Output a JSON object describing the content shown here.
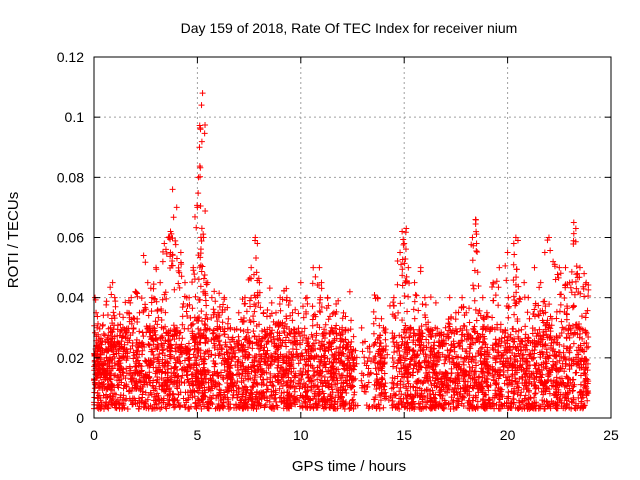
{
  "chart_data": {
    "type": "scatter",
    "title": "Day 159 of 2018, Rate Of TEC Index for receiver nium",
    "xlabel": "GPS time / hours",
    "ylabel": "ROTI / TECUs",
    "xlim": [
      0,
      25
    ],
    "ylim": [
      0,
      0.12
    ],
    "xticks": [
      0,
      5,
      10,
      15,
      20,
      25
    ],
    "xtick_labels": [
      "0",
      "5",
      "10",
      "15",
      "20",
      "25"
    ],
    "yticks": [
      0,
      0.02,
      0.04,
      0.06,
      0.08,
      0.1,
      0.12
    ],
    "ytick_labels": [
      "0",
      "0.02",
      "0.04",
      "0.06",
      "0.08",
      "0.1",
      "0.12"
    ],
    "grid": true,
    "grid_style": "dotted",
    "marker": "+",
    "marker_color": "#ff0000",
    "series": [
      {
        "name": "ROTI",
        "x": [
          0.05,
          0.1,
          0.15,
          0.2,
          0.3,
          0.4,
          0.5,
          0.6,
          0.7,
          0.8,
          0.9,
          1.0,
          1.2,
          1.4,
          1.6,
          1.8,
          2.0,
          2.2,
          2.4,
          2.6,
          2.8,
          3.0,
          3.2,
          3.4,
          3.6,
          3.7,
          3.8,
          4.0,
          4.2,
          4.4,
          4.6,
          4.8,
          5.0,
          5.05,
          5.1,
          5.15,
          5.2,
          5.25,
          5.3,
          5.5,
          5.7,
          6.0,
          6.3,
          6.6,
          7.0,
          7.3,
          7.6,
          7.8,
          7.9,
          8.0,
          8.2,
          8.5,
          8.8,
          9.0,
          9.3,
          9.6,
          10.0,
          10.3,
          10.6,
          10.9,
          11.0,
          11.3,
          11.6,
          12.0,
          12.3,
          12.6,
          13.0,
          13.3,
          13.7,
          13.9,
          14.0,
          14.5,
          14.8,
          14.9,
          15.0,
          15.1,
          15.2,
          15.5,
          15.8,
          16.0,
          16.5,
          16.8,
          17.0,
          17.2,
          17.5,
          17.8,
          18.0,
          18.3,
          18.45,
          18.5,
          18.8,
          19.0,
          19.3,
          19.6,
          20.0,
          20.3,
          20.4,
          20.5,
          20.8,
          21.0,
          21.3,
          21.6,
          21.8,
          22.0,
          22.2,
          22.5,
          22.8,
          23.0,
          23.2,
          23.3,
          23.5,
          23.7,
          23.8
        ],
        "y": [
          0.04,
          0.035,
          0.03,
          0.025,
          0.02,
          0.018,
          0.015,
          0.02,
          0.025,
          0.03,
          0.045,
          0.04,
          0.025,
          0.03,
          0.035,
          0.04,
          0.042,
          0.035,
          0.054,
          0.045,
          0.04,
          0.05,
          0.045,
          0.058,
          0.06,
          0.062,
          0.076,
          0.07,
          0.055,
          0.045,
          0.04,
          0.05,
          0.07,
          0.08,
          0.09,
          0.096,
          0.104,
          0.108,
          0.06,
          0.045,
          0.04,
          0.035,
          0.04,
          0.03,
          0.035,
          0.04,
          0.05,
          0.06,
          0.058,
          0.045,
          0.035,
          0.03,
          0.035,
          0.04,
          0.043,
          0.035,
          0.045,
          0.04,
          0.05,
          0.05,
          0.045,
          0.04,
          0.035,
          0.03,
          0.025,
          0.02,
          0.025,
          0.02,
          0.04,
          0.033,
          0.03,
          0.04,
          0.055,
          0.062,
          0.058,
          0.063,
          0.05,
          0.045,
          0.05,
          0.04,
          0.03,
          0.025,
          0.03,
          0.04,
          0.035,
          0.04,
          0.035,
          0.06,
          0.066,
          0.058,
          0.04,
          0.035,
          0.045,
          0.05,
          0.055,
          0.058,
          0.06,
          0.059,
          0.045,
          0.04,
          0.05,
          0.045,
          0.055,
          0.06,
          0.052,
          0.05,
          0.05,
          0.045,
          0.065,
          0.063,
          0.05,
          0.048,
          0.045
        ],
        "baseline_range": [
          0.003,
          0.03
        ]
      }
    ]
  }
}
